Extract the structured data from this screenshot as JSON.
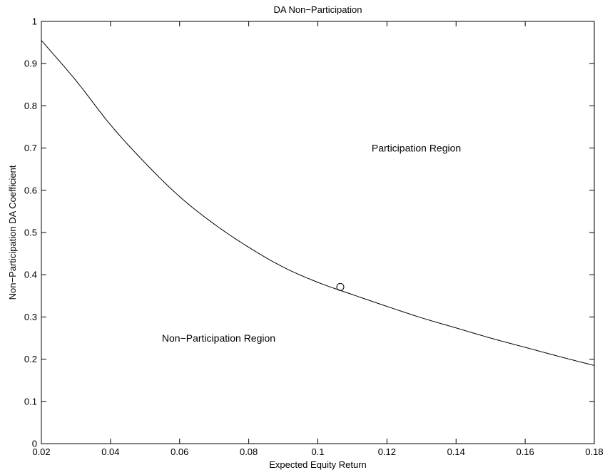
{
  "chart_data": {
    "type": "line",
    "title": "DA Non−Participation",
    "xlabel": "Expected Equity Return",
    "ylabel": "Non−Participation DA Coefficient",
    "xlim": [
      0.02,
      0.18
    ],
    "ylim": [
      0,
      1
    ],
    "grid": false,
    "legend": "none",
    "x_ticks": [
      {
        "value": 0.02,
        "label": "0.02"
      },
      {
        "value": 0.04,
        "label": "0.04"
      },
      {
        "value": 0.06,
        "label": "0.06"
      },
      {
        "value": 0.08,
        "label": "0.08"
      },
      {
        "value": 0.1,
        "label": "0.1"
      },
      {
        "value": 0.12,
        "label": "0.12"
      },
      {
        "value": 0.14,
        "label": "0.14"
      },
      {
        "value": 0.16,
        "label": "0.16"
      },
      {
        "value": 0.18,
        "label": "0.18"
      }
    ],
    "y_ticks": [
      {
        "value": 0,
        "label": "0"
      },
      {
        "value": 0.1,
        "label": "0.1"
      },
      {
        "value": 0.2,
        "label": "0.2"
      },
      {
        "value": 0.3,
        "label": "0.3"
      },
      {
        "value": 0.4,
        "label": "0.4"
      },
      {
        "value": 0.5,
        "label": "0.5"
      },
      {
        "value": 0.6,
        "label": "0.6"
      },
      {
        "value": 0.7,
        "label": "0.7"
      },
      {
        "value": 0.8,
        "label": "0.8"
      },
      {
        "value": 0.9,
        "label": "0.9"
      },
      {
        "value": 1,
        "label": "1"
      }
    ],
    "series": [
      {
        "x": [
          0.02,
          0.03,
          0.04,
          0.05,
          0.06,
          0.07,
          0.08,
          0.09,
          0.1,
          0.11,
          0.12,
          0.13,
          0.14,
          0.15,
          0.16,
          0.17,
          0.18
        ],
        "y": [
          0.955,
          0.86,
          0.755,
          0.665,
          0.585,
          0.52,
          0.465,
          0.418,
          0.382,
          0.353,
          0.325,
          0.298,
          0.274,
          0.25,
          0.228,
          0.206,
          0.185
        ],
        "color": "#000000"
      }
    ],
    "markers": [
      {
        "x": 0.1065,
        "y": 0.371,
        "shape": "circle"
      }
    ],
    "annotations": [
      {
        "text": "Participation Region",
        "x": 0.1285,
        "y": 0.7
      },
      {
        "text": "Non−Participation Region",
        "x": 0.0713,
        "y": 0.25
      }
    ]
  }
}
